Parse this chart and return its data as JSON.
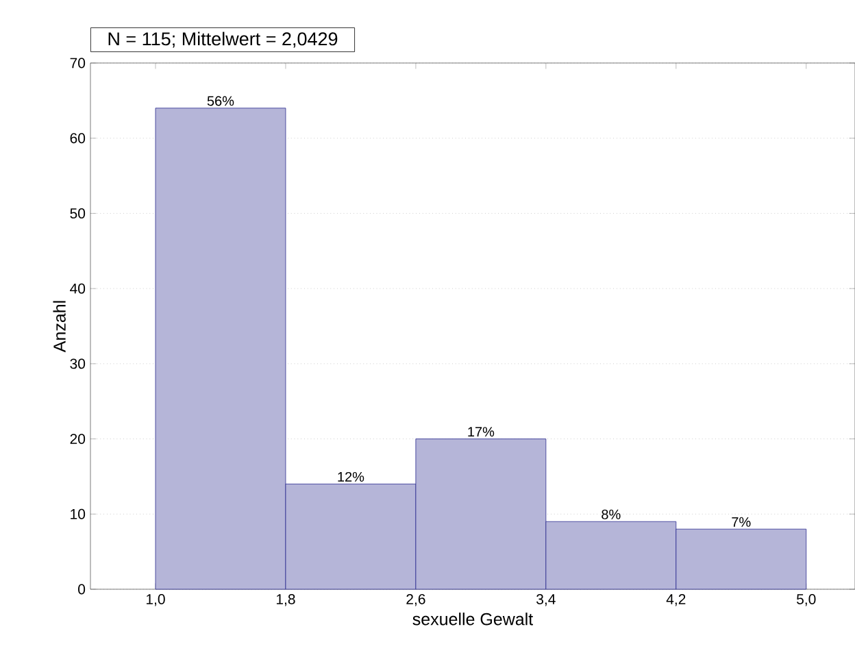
{
  "chart_data": {
    "type": "histogram",
    "title": "N = 115; Mittelwert = 2,0429",
    "xlabel": "sexuelle Gewalt",
    "ylabel": "Anzahl",
    "bins": [
      1.0,
      1.8,
      2.6,
      3.4,
      4.2,
      5.0
    ],
    "values": [
      64,
      14,
      20,
      9,
      8
    ],
    "annotations": [
      {
        "text": "56%",
        "x": 1.4,
        "y": 64
      },
      {
        "text": "12%",
        "x": 2.2,
        "y": 14
      },
      {
        "text": "17%",
        "x": 3.0,
        "y": 20
      },
      {
        "text": "8%",
        "x": 3.8,
        "y": 9
      },
      {
        "text": "7%",
        "x": 4.6,
        "y": 8
      }
    ],
    "color": "#2b2b8f",
    "xlim": [
      0.6,
      5.3
    ],
    "xticks": [
      {
        "value": 1.0,
        "label": "1,0"
      },
      {
        "value": 1.8,
        "label": "1,8"
      },
      {
        "value": 2.6,
        "label": "2,6"
      },
      {
        "value": 3.4,
        "label": "3,4"
      },
      {
        "value": 4.2,
        "label": "4,2"
      },
      {
        "value": 5.0,
        "label": "5,0"
      }
    ],
    "ylim": [
      0,
      70
    ],
    "yticks": [
      0,
      10,
      20,
      30,
      40,
      50,
      60,
      70
    ],
    "grid": "y"
  }
}
